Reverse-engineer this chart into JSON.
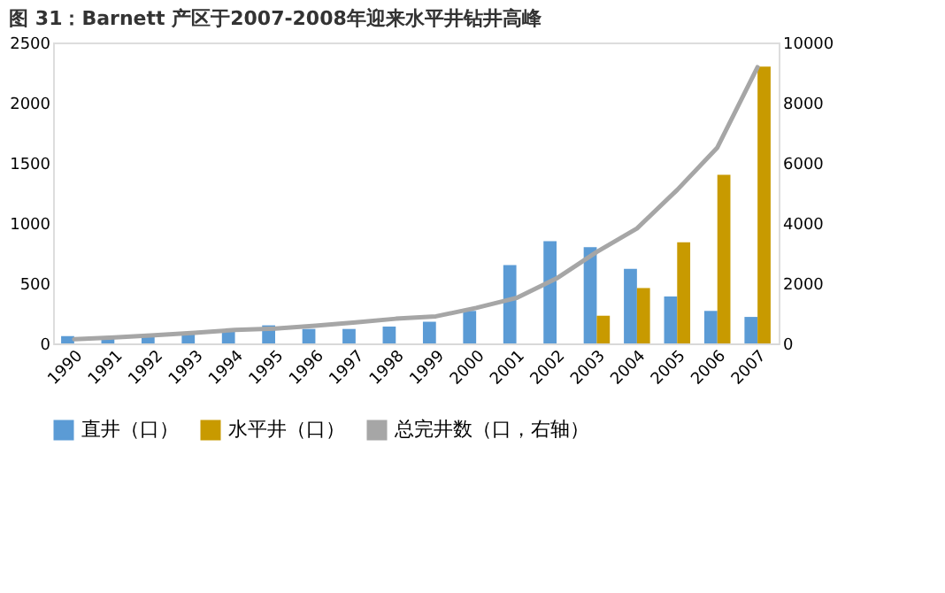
{
  "chart_data": {
    "type": "bar",
    "title": "图 31：Barnett 产区于2007-2008年迎来水平井钻井高峰",
    "categories": [
      "1990",
      "1991",
      "1992",
      "1993",
      "1994",
      "1995",
      "1996",
      "1997",
      "1998",
      "1999",
      "2000",
      "2001",
      "2002",
      "2003",
      "2004",
      "2005",
      "2006",
      "2007"
    ],
    "series": [
      {
        "name": "直井（口）",
        "color": "#5b9bd5",
        "values": [
          60,
          50,
          60,
          80,
          100,
          150,
          120,
          120,
          140,
          180,
          270,
          650,
          850,
          800,
          620,
          390,
          270,
          220
        ]
      },
      {
        "name": "水平井（口）",
        "color": "#c89a00",
        "values": [
          null,
          null,
          null,
          null,
          null,
          null,
          null,
          null,
          null,
          null,
          null,
          null,
          null,
          230,
          460,
          840,
          1400,
          2300
        ]
      },
      {
        "name": "总完井数（口，右轴）",
        "type": "line",
        "axis": "y2",
        "color": "#a6a6a6",
        "values": [
          140,
          200,
          270,
          350,
          450,
          490,
          590,
          700,
          820,
          900,
          1180,
          1510,
          2160,
          3040,
          3820,
          5100,
          6510,
          9180
        ]
      }
    ],
    "ylim": [
      0,
      2500
    ],
    "yticks": [
      0,
      500,
      1000,
      1500,
      2000,
      2500
    ],
    "y2lim": [
      0,
      10000
    ],
    "y2ticks": [
      0,
      2000,
      4000,
      6000,
      8000,
      10000
    ],
    "grid": false,
    "legend": "bottom"
  }
}
